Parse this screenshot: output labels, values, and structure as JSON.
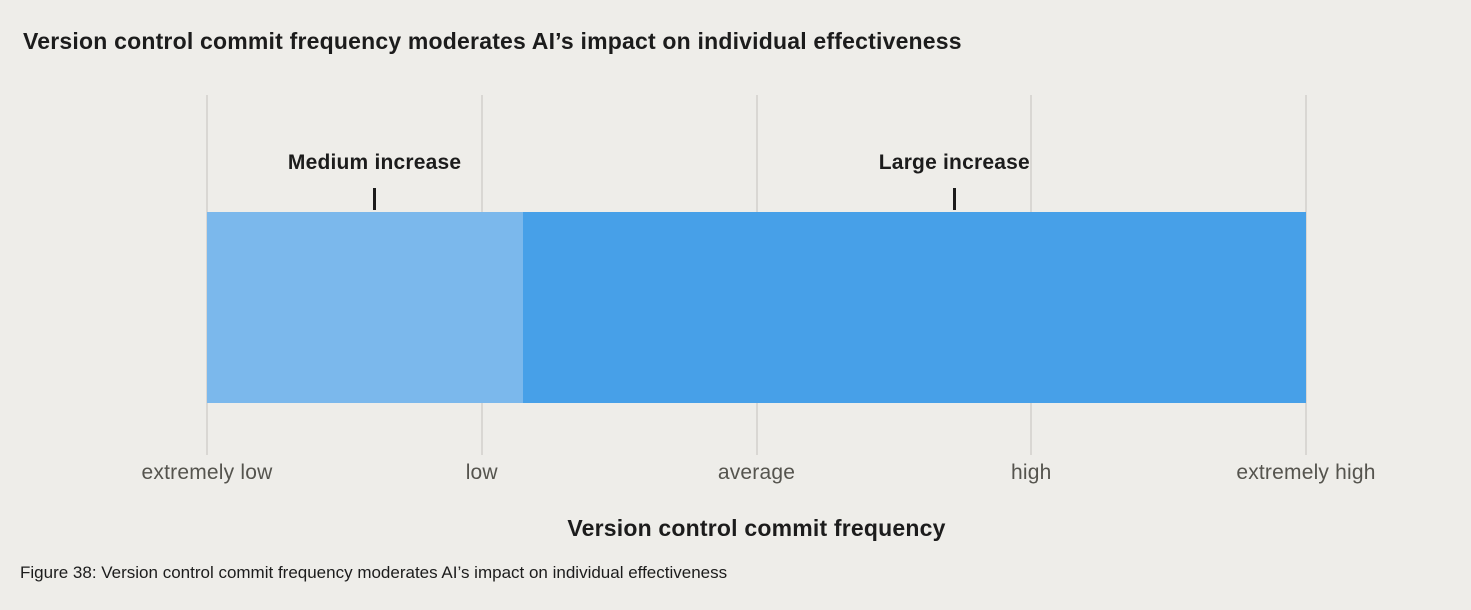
{
  "chart_data": {
    "type": "bar",
    "subtype": "horizontal-segmented-effect-band",
    "title": "Version control commit frequency moderates AI’s impact on individual effectiveness",
    "xlabel": "Version control commit frequency",
    "caption": "Figure 38: Version control commit frequency moderates AI’s impact on individual effectiveness",
    "x_axis": {
      "tick_labels": [
        "extremely low",
        "low",
        "average",
        "high",
        "extremely high"
      ],
      "range": [
        0,
        4
      ],
      "grid": true
    },
    "segments": [
      {
        "label": "Medium increase",
        "from": 0,
        "to": 1.15,
        "color": "#7bb8ec",
        "annotation_x": 0.61
      },
      {
        "label": "Large increase",
        "from": 1.15,
        "to": 4,
        "color": "#47a0e8",
        "annotation_x": 2.72
      }
    ],
    "legend": "none",
    "colors": {
      "background": "#eeede9",
      "gridline": "#d9d7d3",
      "title_text": "#1c1c1c",
      "annotation_text": "#1c1c1c",
      "tick_label_text": "#55544e"
    }
  }
}
